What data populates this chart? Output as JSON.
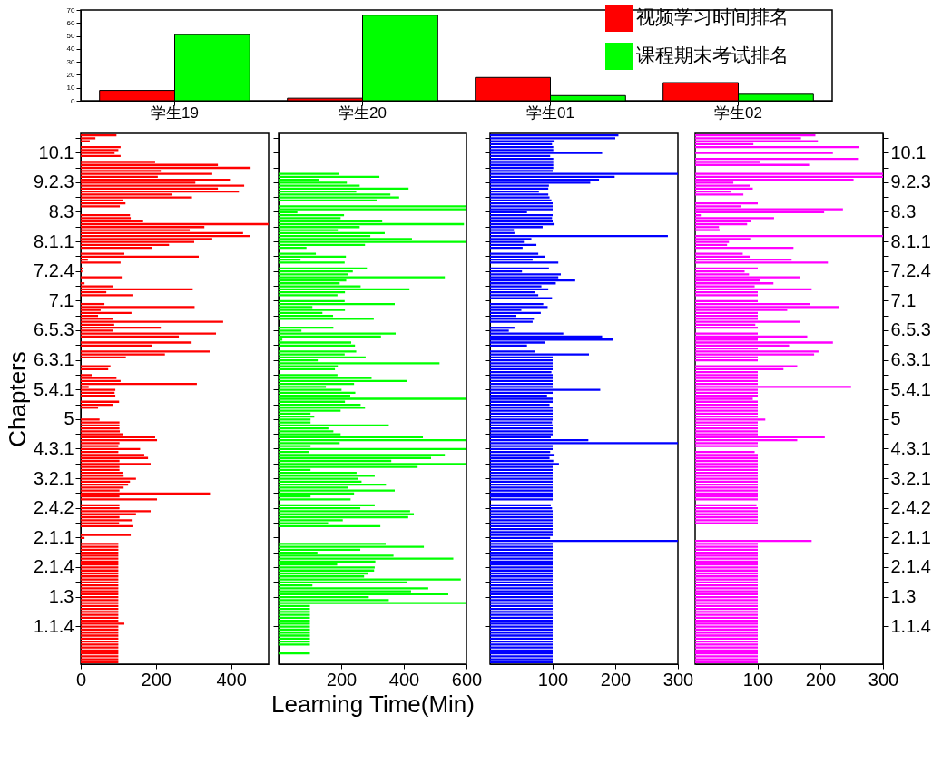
{
  "chart_data": [
    {
      "type": "bar",
      "categories": [
        "学生19",
        "学生20",
        "学生01",
        "学生02"
      ],
      "ylim": [
        0,
        70
      ],
      "yticks": [
        0,
        10,
        20,
        30,
        40,
        50,
        60,
        70
      ],
      "grid": false,
      "legend": "top right",
      "series": [
        {
          "name": "视频学习时间排名",
          "color": "#ff0000",
          "values": [
            8,
            2,
            18,
            14
          ]
        },
        {
          "name": "课程期末考试排名",
          "color": "#00ff00",
          "values": [
            51,
            66,
            4,
            5
          ]
        }
      ]
    },
    {
      "type": "bar",
      "orientation": "horizontal",
      "ylabel": "Chapters",
      "xlim": [
        0,
        500
      ],
      "xticks": [
        0,
        200,
        400
      ],
      "grid": false,
      "categories": [
        null,
        null,
        null,
        null,
        null,
        null,
        "10.1",
        null,
        null,
        null,
        null,
        null,
        null,
        null,
        null,
        null,
        "9.2.3",
        null,
        null,
        null,
        null,
        null,
        null,
        null,
        null,
        null,
        "8.3",
        null,
        null,
        null,
        null,
        null,
        null,
        null,
        null,
        null,
        "8.1.1",
        null,
        null,
        null,
        null,
        null,
        null,
        null,
        null,
        null,
        "7.2.4",
        null,
        null,
        null,
        null,
        null,
        null,
        null,
        null,
        null,
        "7.1",
        null,
        null,
        null,
        null,
        null,
        null,
        null,
        null,
        null,
        "6.5.3",
        null,
        null,
        null,
        null,
        null,
        null,
        null,
        null,
        null,
        "6.3.1",
        null,
        null,
        null,
        null,
        null,
        null,
        null,
        null,
        null,
        "5.4.1",
        null,
        null,
        null,
        null,
        null,
        null,
        null,
        null,
        null,
        "5",
        null,
        null,
        null,
        null,
        null,
        null,
        null,
        null,
        null,
        "4.3.1",
        null,
        null,
        null,
        null,
        null,
        null,
        null,
        null,
        null,
        "3.2.1",
        null,
        null,
        null,
        null,
        null,
        null,
        null,
        null,
        null,
        "2.4.2",
        null,
        null,
        null,
        null,
        null,
        null,
        null,
        null,
        null,
        "2.1.1",
        null,
        null,
        null,
        null,
        null,
        null,
        null,
        null,
        null,
        "2.1.4",
        null,
        null,
        null,
        null,
        null,
        null,
        null,
        null,
        null,
        "1.3",
        null,
        null,
        null,
        null,
        null,
        null,
        null,
        null,
        null,
        "1.1.4",
        null,
        null,
        null,
        null,
        null,
        null,
        null,
        null,
        null,
        null,
        null,
        null
      ],
      "series": [
        {
          "color": "#ff0000",
          "values": [
            95,
            39,
            24,
            null,
            106,
            100,
            90,
            106,
            null,
            198,
            365,
            452,
            213,
            350,
            205,
            397,
            305,
            435,
            365,
            421,
            244,
            296,
            113,
            119,
            104,
            null,
            null,
            131,
            133,
            166,
            500,
            329,
            290,
            432,
            450,
            350,
            302,
            235,
            189,
            null,
            116,
            314,
            19,
            106,
            null,
            5,
            4,
            null,
            109,
            null,
            10,
            87,
            298,
            68,
            140,
            null,
            null,
            63,
            303,
            53,
            135,
            46,
            85,
            379,
            89,
            213,
            87,
            360,
            261,
            null,
            295,
            189,
            null,
            343,
            224,
            120,
            null,
            null,
            79,
            73,
            null,
            29,
            95,
            106,
            309,
            21,
            92,
            90,
            92,
            null,
            102,
            85,
            46,
            null,
            null,
            null,
            50,
            103,
            103,
            103,
            104,
            113,
            198,
            203,
            103,
            100,
            158,
            100,
            169,
            179,
            103,
            186,
            103,
            103,
            111,
            114,
            147,
            131,
            126,
            114,
            103,
            344,
            103,
            203,
            null,
            103,
            103,
            186,
            147,
            103,
            138,
            102,
            140,
            null,
            null,
            133,
            10,
            null,
            100,
            100,
            100,
            100,
            100,
            100,
            100,
            100,
            100,
            100,
            100,
            100,
            100,
            100,
            100,
            100,
            100,
            100,
            100,
            100,
            100,
            100,
            100,
            100,
            100,
            100,
            100,
            116,
            100,
            100,
            100,
            100,
            100,
            100,
            100,
            100,
            100,
            100,
            100,
            100,
            100
          ]
        }
      ]
    },
    {
      "type": "bar",
      "orientation": "horizontal",
      "xlabel": "Learning Time(Min)",
      "xlim": [
        0,
        600
      ],
      "xticks": [
        200,
        400,
        600
      ],
      "grid": false,
      "tick_labels": "x",
      "categories": [
        null,
        null,
        null,
        null,
        null,
        null,
        "10.1",
        null,
        null,
        null,
        null,
        null,
        null,
        null,
        null,
        null,
        "9.2.3",
        null,
        null,
        null,
        null,
        null,
        null,
        null,
        null,
        null,
        "8.3",
        null,
        null,
        null,
        null,
        null,
        null,
        null,
        null,
        null,
        "8.1.1",
        null,
        null,
        null,
        null,
        null,
        null,
        null,
        null,
        null,
        "7.2.4",
        null,
        null,
        null,
        null,
        null,
        null,
        null,
        null,
        null,
        "7.1",
        null,
        null,
        null,
        null,
        null,
        null,
        null,
        null,
        null,
        "6.5.3",
        null,
        null,
        null,
        null,
        null,
        null,
        null,
        null,
        null,
        "6.3.1",
        null,
        null,
        null,
        null,
        null,
        null,
        null,
        null,
        null,
        "5.4.1",
        null,
        null,
        null,
        null,
        null,
        null,
        null,
        null,
        null,
        "5",
        null,
        null,
        null,
        null,
        null,
        null,
        null,
        null,
        null,
        "4.3.1",
        null,
        null,
        null,
        null,
        null,
        null,
        null,
        null,
        null,
        "3.2.1",
        null,
        null,
        null,
        null,
        null,
        null,
        null,
        null,
        null,
        "2.4.2",
        null,
        null,
        null,
        null,
        null,
        null,
        null,
        null,
        null,
        "2.1.1",
        null,
        null,
        null,
        null,
        null,
        null,
        null,
        null,
        null,
        "2.1.4",
        null,
        null,
        null,
        null,
        null,
        null,
        null,
        null,
        null,
        "1.3",
        null,
        null,
        null,
        null,
        null,
        null,
        null,
        null,
        null,
        "1.1.4",
        null,
        null,
        null,
        null,
        null,
        null,
        null,
        null,
        null,
        null,
        null,
        null
      ],
      "series": [
        {
          "color": "#00ff00",
          "values": [
            null,
            null,
            null,
            null,
            null,
            null,
            null,
            null,
            null,
            null,
            null,
            null,
            null,
            194,
            322,
            128,
            218,
            259,
            415,
            248,
            357,
            385,
            313,
            null,
            600,
            600,
            60,
            209,
            198,
            331,
            592,
            259,
            189,
            339,
            293,
            426,
            600,
            276,
            89,
            null,
            119,
            215,
            70,
            211,
            null,
            282,
            237,
            223,
            531,
            216,
            195,
            262,
            418,
            212,
            188,
            null,
            211,
            371,
            108,
            212,
            140,
            174,
            304,
            null,
            null,
            175,
            73,
            374,
            327,
            12,
            232,
            244,
            null,
            248,
            211,
            278,
            125,
            514,
            189,
            180,
            null,
            188,
            297,
            410,
            241,
            151,
            201,
            245,
            229,
            600,
            212,
            262,
            276,
            198,
            102,
            114,
            102,
            102,
            352,
            159,
            175,
            198,
            461,
            600,
            195,
            102,
            600,
            97,
            531,
            487,
            360,
            600,
            444,
            102,
            249,
            307,
            255,
            265,
            343,
            223,
            371,
            241,
            102,
            230,
            null,
            307,
            261,
            420,
            432,
            414,
            205,
            158,
            325,
            null,
            null,
            null,
            null,
            null,
            342,
            464,
            261,
            124,
            367,
            558,
            309,
            187,
            307,
            305,
            287,
            273,
            582,
            410,
            108,
            478,
            423,
            542,
            288,
            352,
            600,
            100,
            100,
            100,
            100,
            100,
            100,
            100,
            100,
            100,
            100,
            100,
            100,
            100,
            100,
            null,
            null,
            100,
            null,
            null,
            null
          ]
        }
      ]
    },
    {
      "type": "bar",
      "orientation": "horizontal",
      "xlim": [
        0,
        300
      ],
      "xticks": [
        100,
        200,
        300
      ],
      "grid": false,
      "tick_labels": "x",
      "categories": [
        null,
        null,
        null,
        null,
        null,
        null,
        "10.1",
        null,
        null,
        null,
        null,
        null,
        null,
        null,
        null,
        null,
        "9.2.3",
        null,
        null,
        null,
        null,
        null,
        null,
        null,
        null,
        null,
        "8.3",
        null,
        null,
        null,
        null,
        null,
        null,
        null,
        null,
        null,
        "8.1.1",
        null,
        null,
        null,
        null,
        null,
        null,
        null,
        null,
        null,
        "7.2.4",
        null,
        null,
        null,
        null,
        null,
        null,
        null,
        null,
        null,
        "7.1",
        null,
        null,
        null,
        null,
        null,
        null,
        null,
        null,
        null,
        "6.5.3",
        null,
        null,
        null,
        null,
        null,
        null,
        null,
        null,
        null,
        "6.3.1",
        null,
        null,
        null,
        null,
        null,
        null,
        null,
        null,
        null,
        "5.4.1",
        null,
        null,
        null,
        null,
        null,
        null,
        null,
        null,
        null,
        "5",
        null,
        null,
        null,
        null,
        null,
        null,
        null,
        null,
        null,
        "4.3.1",
        null,
        null,
        null,
        null,
        null,
        null,
        null,
        null,
        null,
        "3.2.1",
        null,
        null,
        null,
        null,
        null,
        null,
        null,
        null,
        null,
        "2.4.2",
        null,
        null,
        null,
        null,
        null,
        null,
        null,
        null,
        null,
        "2.1.1",
        null,
        null,
        null,
        null,
        null,
        null,
        null,
        null,
        null,
        "2.1.4",
        null,
        null,
        null,
        null,
        null,
        null,
        null,
        null,
        null,
        "1.3",
        null,
        null,
        null,
        null,
        null,
        null,
        null,
        null,
        null,
        "1.1.4",
        null,
        null,
        null,
        null,
        null,
        null,
        null,
        null,
        null,
        null,
        null,
        null
      ],
      "series": [
        {
          "color": "#0000ff",
          "values": [
            205,
            200,
            103,
            99,
            101,
            101,
            179,
            96,
            101,
            101,
            101,
            101,
            100,
            300,
            199,
            174,
            160,
            94,
            93,
            78,
            93,
            95,
            98,
            100,
            100,
            100,
            59,
            100,
            99,
            100,
            103,
            84,
            38,
            39,
            284,
            66,
            54,
            74,
            52,
            null,
            77,
            87,
            68,
            109,
            null,
            94,
            51,
            113,
            109,
            136,
            105,
            82,
            93,
            71,
            77,
            99,
            null,
            85,
            92,
            50,
            81,
            42,
            70,
            68,
            null,
            39,
            30,
            117,
            179,
            196,
            88,
            59,
            null,
            71,
            158,
            100,
            100,
            100,
            100,
            100,
            98,
            100,
            100,
            100,
            100,
            100,
            176,
            100,
            91,
            100,
            100,
            95,
            100,
            100,
            100,
            100,
            100,
            99,
            100,
            100,
            100,
            100,
            97,
            157,
            300,
            100,
            100,
            96,
            103,
            95,
            101,
            110,
            100,
            100,
            100,
            100,
            100,
            100,
            100,
            100,
            100,
            100,
            100,
            100,
            null,
            97,
            99,
            100,
            100,
            100,
            100,
            100,
            100,
            100,
            100,
            100,
            96,
            300,
            100,
            100,
            100,
            100,
            100,
            100,
            100,
            100,
            100,
            100,
            100,
            100,
            100,
            100,
            100,
            100,
            100,
            100,
            100,
            100,
            100,
            100,
            100,
            100,
            100,
            100,
            100,
            100,
            100,
            100,
            100,
            100,
            100,
            100,
            100,
            100,
            100,
            100,
            100,
            100,
            100
          ]
        }
      ]
    },
    {
      "type": "bar",
      "orientation": "horizontal",
      "xlim": [
        0,
        300
      ],
      "xticks": [
        100,
        200,
        300
      ],
      "grid": false,
      "categories": [
        null,
        null,
        null,
        null,
        null,
        null,
        "10.1",
        null,
        null,
        null,
        null,
        null,
        null,
        null,
        null,
        null,
        "9.2.3",
        null,
        null,
        null,
        null,
        null,
        null,
        null,
        null,
        null,
        "8.3",
        null,
        null,
        null,
        null,
        null,
        null,
        null,
        null,
        null,
        "8.1.1",
        null,
        null,
        null,
        null,
        null,
        null,
        null,
        null,
        null,
        "7.2.4",
        null,
        null,
        null,
        null,
        null,
        null,
        null,
        null,
        null,
        "7.1",
        null,
        null,
        null,
        null,
        null,
        null,
        null,
        null,
        null,
        "6.5.3",
        null,
        null,
        null,
        null,
        null,
        null,
        null,
        null,
        null,
        "6.3.1",
        null,
        null,
        null,
        null,
        null,
        null,
        null,
        null,
        null,
        "5.4.1",
        null,
        null,
        null,
        null,
        null,
        null,
        null,
        null,
        null,
        "5",
        null,
        null,
        null,
        null,
        null,
        null,
        null,
        null,
        null,
        "4.3.1",
        null,
        null,
        null,
        null,
        null,
        null,
        null,
        null,
        null,
        "3.2.1",
        null,
        null,
        null,
        null,
        null,
        null,
        null,
        null,
        null,
        "2.4.2",
        null,
        null,
        null,
        null,
        null,
        null,
        null,
        null,
        null,
        "2.1.1",
        null,
        null,
        null,
        null,
        null,
        null,
        null,
        null,
        null,
        "2.1.4",
        null,
        null,
        null,
        null,
        null,
        null,
        null,
        null,
        null,
        "1.3",
        null,
        null,
        null,
        null,
        null,
        null,
        null,
        null,
        null,
        "1.1.4",
        null,
        null,
        null,
        null,
        null,
        null,
        null,
        null,
        null,
        null,
        null,
        null
      ],
      "series": [
        {
          "color": "#ff00ff",
          "values": [
            192,
            169,
            196,
            93,
            262,
            null,
            220,
            null,
            260,
            103,
            182,
            null,
            null,
            300,
            300,
            253,
            61,
            87,
            92,
            57,
            77,
            null,
            null,
            100,
            73,
            236,
            206,
            9,
            126,
            89,
            83,
            38,
            39,
            null,
            300,
            88,
            54,
            51,
            157,
            null,
            76,
            87,
            154,
            212,
            null,
            100,
            79,
            86,
            167,
            103,
            125,
            95,
            186,
            100,
            100,
            null,
            100,
            183,
            230,
            147,
            100,
            100,
            100,
            168,
            96,
            100,
            null,
            100,
            179,
            100,
            220,
            150,
            100,
            197,
            190,
            100,
            100,
            null,
            163,
            141,
            100,
            100,
            100,
            100,
            100,
            249,
            100,
            100,
            100,
            92,
            100,
            100,
            100,
            100,
            100,
            100,
            112,
            100,
            100,
            100,
            100,
            100,
            207,
            163,
            100,
            100,
            null,
            95,
            100,
            100,
            100,
            100,
            100,
            100,
            100,
            100,
            100,
            100,
            100,
            100,
            100,
            100,
            100,
            100,
            null,
            98,
            100,
            100,
            100,
            100,
            100,
            100,
            null,
            null,
            null,
            null,
            null,
            186,
            100,
            100,
            100,
            100,
            100,
            100,
            100,
            100,
            100,
            100,
            100,
            100,
            100,
            100,
            100,
            100,
            100,
            100,
            100,
            100,
            100,
            100,
            100,
            100,
            100,
            100,
            100,
            100,
            100,
            100,
            100,
            100,
            100,
            100,
            100,
            100,
            100,
            100,
            100,
            100,
            100
          ]
        }
      ]
    }
  ]
}
